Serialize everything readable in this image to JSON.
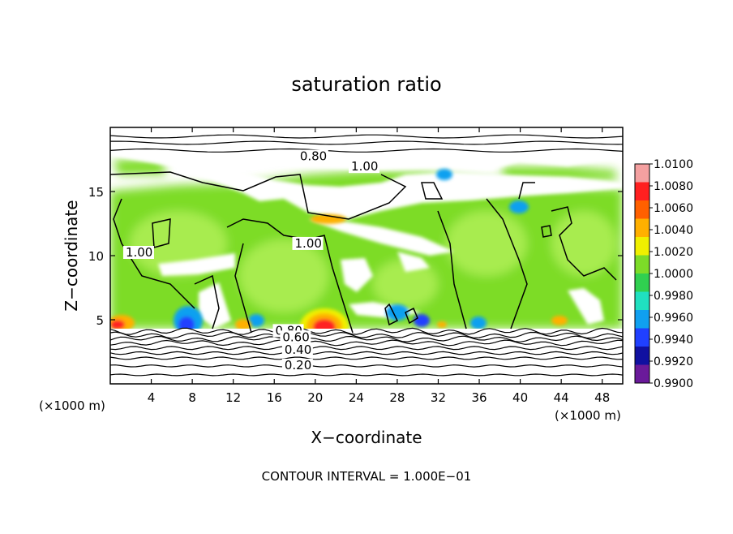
{
  "chart_data": {
    "type": "heatmap",
    "title": "saturation ratio",
    "xlabel": "X−coordinate",
    "ylabel": "Z−coordinate",
    "x_unit_left": "(×1000 m)",
    "x_unit_right": "(×1000 m)",
    "footer": "CONTOUR INTERVAL = 1.000E−01",
    "xlim": [
      0,
      50
    ],
    "ylim": [
      0,
      20
    ],
    "x_ticks": [
      4,
      8,
      12,
      16,
      20,
      24,
      28,
      32,
      36,
      40,
      44,
      48
    ],
    "y_ticks": [
      5,
      10,
      15
    ],
    "colorbar": {
      "min": 0.99,
      "max": 1.01,
      "labels": [
        "1.0100",
        "1.0080",
        "1.0060",
        "1.0040",
        "1.0020",
        "1.0000",
        "0.9980",
        "0.9960",
        "0.9940",
        "0.9920",
        "0.9900"
      ],
      "colors": [
        "#f4a0a0",
        "#ff2020",
        "#ff6000",
        "#ffb000",
        "#f0f000",
        "#7ddc28",
        "#30d050",
        "#20e0c0",
        "#10a0f0",
        "#2040ff",
        "#1010a0",
        "#6a1a9a"
      ]
    },
    "contour_labels": [
      {
        "text": "0.80",
        "x": 18.5,
        "z": 17.5
      },
      {
        "text": "1.00",
        "x": 23.5,
        "z": 16.7
      },
      {
        "text": "1.00",
        "x": 18.0,
        "z": 10.7
      },
      {
        "text": "1.00",
        "x": 1.5,
        "z": 10.0
      },
      {
        "text": "0.80",
        "x": 16.1,
        "z": 3.9
      },
      {
        "text": "0.60",
        "x": 16.8,
        "z": 3.4
      },
      {
        "text": "0.40",
        "x": 17.0,
        "z": 2.4
      },
      {
        "text": "0.20",
        "x": 17.0,
        "z": 1.2
      }
    ],
    "low_level_contours": [
      0.7,
      1.4,
      2.0,
      2.4,
      2.8,
      3.2,
      3.5,
      3.8,
      4.1
    ],
    "upper_contours": [
      18.2,
      18.8,
      19.3
    ]
  }
}
